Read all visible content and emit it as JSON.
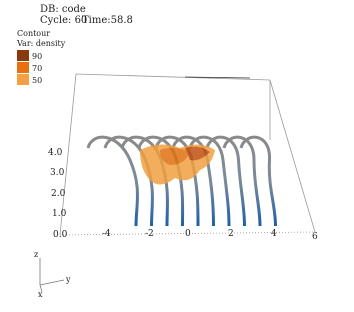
{
  "header": {
    "database": "DB: code",
    "cycle": "Cycle: 60",
    "time": "Time:58.8"
  },
  "legend": {
    "title": "Contour",
    "variable": "Var: density",
    "levels": [
      "90",
      "70",
      "50"
    ]
  },
  "axes": {
    "vertical_ticks": [
      "4.0",
      "3.0",
      "2.0",
      "1.0",
      "0.0"
    ],
    "horizontal_ticks": [
      "-4",
      "-2",
      "0",
      "2",
      "4",
      "6"
    ],
    "triad": [
      "z",
      "y",
      "x"
    ]
  }
}
